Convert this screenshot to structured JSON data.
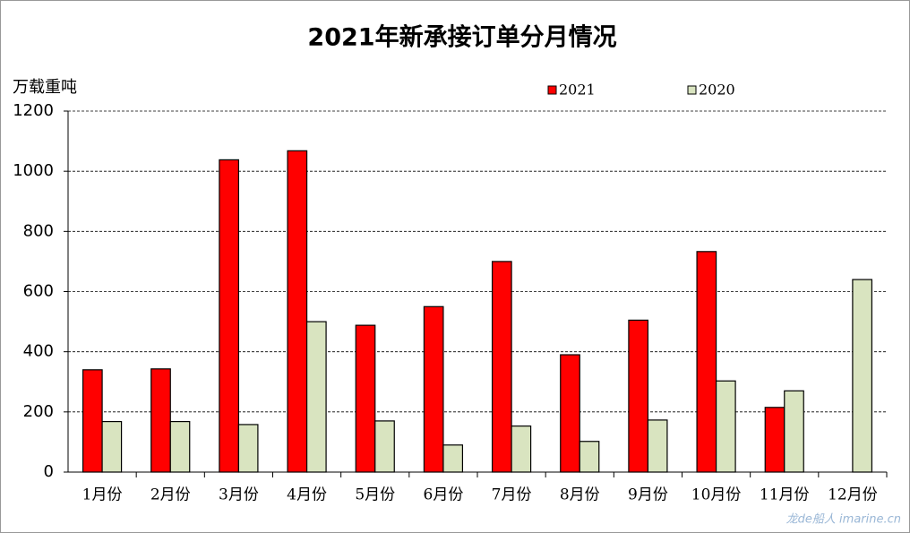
{
  "chart_data": {
    "type": "bar",
    "title": "2021年新承接订单分月情况",
    "y_label": "万载重吨",
    "categories": [
      "1月份",
      "2月份",
      "3月份",
      "4月份",
      "5月份",
      "6月份",
      "7月份",
      "8月份",
      "9月份",
      "10月份",
      "11月份",
      "12月份"
    ],
    "series": [
      {
        "name": "2021",
        "color": "#ff0000",
        "values": [
          340,
          343,
          1038,
          1068,
          488,
          550,
          700,
          390,
          505,
          733,
          215,
          null
        ]
      },
      {
        "name": "2020",
        "color": "#d9e4c0",
        "values": [
          168,
          168,
          158,
          500,
          170,
          90,
          153,
          102,
          173,
          303,
          270,
          640
        ]
      }
    ],
    "ylim": [
      0,
      1200
    ],
    "yticks": [
      0,
      200,
      400,
      600,
      800,
      1000,
      1200
    ],
    "grid": true,
    "watermark": "龙de船人 imarine.cn"
  }
}
